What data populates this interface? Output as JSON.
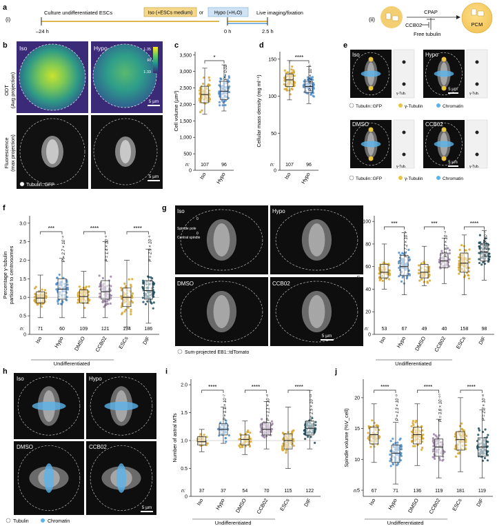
{
  "colors": {
    "iso": "#d6a52b",
    "hypo": "#4f8fcf",
    "dmso": "#d6a52b",
    "ccb02": "#9b83a8",
    "escs": "#d6a52b",
    "dif": "#1f4d5c",
    "tubulin": "#ffffff",
    "gtub": "#e8c441",
    "chromatin": "#5ab4ea",
    "pcm": "#f2c55a"
  },
  "panel_a": {
    "letter": "a",
    "sub_i": "(i)",
    "culture": "Culture undifferentiated ESCs",
    "iso_box": "Iso (+ESCs medium)",
    "or": "or",
    "hypo_box": "Hypo (+H₂O)",
    "live": "Live imaging/fixation",
    "t1": "–24 h",
    "t2": "0 h",
    "t3": "2.5 h",
    "sub_ii": "(ii)",
    "cpap": "CPAP",
    "ccb02": "CCB02",
    "free_tubulin": "Free tubulin",
    "pcm": "PCM"
  },
  "panel_b": {
    "letter": "b",
    "iso": "Iso",
    "hypo": "Hypo",
    "odt_label": "ODT\n(Avg projection)",
    "fluo_label": "Fluorescence\n(max projection)",
    "cb_max": "1.35",
    "cb_mid": "RI",
    "cb_min": "1.33",
    "scale1": "5 µm",
    "scale2": "5 µm",
    "legend": "Tubulin::GFP"
  },
  "panel_c": {
    "letter": "c",
    "ylabel": "Cell volume (µm³)",
    "yticks": [
      "0",
      "500",
      "1,000",
      "1,500",
      "2,000",
      "2,500",
      "3,000",
      "3,500"
    ],
    "sig": "*",
    "p": "P = 0.02",
    "n_label": "n:",
    "n": [
      "107",
      "96"
    ],
    "xcats": [
      "Iso",
      "Hypo"
    ]
  },
  "panel_d": {
    "letter": "d",
    "ylabel": "Cellular mass density (mg ml⁻¹)",
    "yticks": [
      "0",
      "50",
      "100",
      "150"
    ],
    "sig": "****",
    "p": "P = 6.2 × 10⁻⁶",
    "n_label": "n:",
    "n": [
      "107",
      "96"
    ],
    "xcats": [
      "Iso",
      "Hypo"
    ]
  },
  "panel_e": {
    "letter": "e",
    "iso": "Iso",
    "hypo": "Hypo",
    "dmso": "DMSO",
    "ccb02": "CCB02",
    "gtub1": "γ-Tub.",
    "gtub2": "γ-Tub.",
    "gtub3": "γ-Tub.",
    "gtub4": "γ-Tub.",
    "scale1": "5 µm",
    "scale2": "5 µm",
    "legend1": [
      "Tubulin::GFP",
      "γ-Tubulin",
      "Chromatin"
    ],
    "legend2": [
      "Tubulin::GFP",
      "γ-Tubulin",
      "Chromatin"
    ]
  },
  "panel_f": {
    "letter": "f",
    "ylabel": "Percentage γ-tubulin\npartioned to centrosomes",
    "yticks": [
      "0",
      "0.5",
      "1.0",
      "1.5",
      "2.0",
      "2.5",
      "3.0"
    ],
    "sigs": [
      "***",
      "****",
      "****"
    ],
    "ps": [
      "P = 2.7 × 10⁻⁴",
      "P = 1.4 × 10⁻³",
      "P = 2.9 × 10⁻³"
    ],
    "n_label": "n:",
    "n": [
      "71",
      "60",
      "109",
      "121",
      "194",
      "186"
    ],
    "xcats": [
      "Iso",
      "Hypo",
      "DMSO",
      "CCB02",
      "ESCs",
      "DIF"
    ],
    "group": "Undifferentiated"
  },
  "panel_g": {
    "letter": "g",
    "iso": "Iso",
    "hypo": "Hypo",
    "dmso": "DMSO",
    "ccb02": "CCB02",
    "spindle_pole": "Spindle pole",
    "central_spindle": "Central spindle",
    "c0a": "0",
    "c0b": "0",
    "scale": "5 µm",
    "legend": "Sum-projected EB1::tdTomato",
    "ylabel": "EB1 fraction at poles (%)",
    "yticks": [
      "0",
      "20",
      "40",
      "60",
      "80",
      "100"
    ],
    "sigs": [
      "***",
      "***",
      "****"
    ],
    "ps": [
      "P = 7.2 × 10⁻⁴",
      "P = 8.7 × 10⁻⁴",
      "P = 2.0 × 10⁻⁷"
    ],
    "n_label": "n:",
    "n": [
      "53",
      "67",
      "49",
      "40",
      "158",
      "98"
    ],
    "xcats": [
      "Iso",
      "Hypo",
      "DMSO",
      "CCB02",
      "ESCs",
      "DIF"
    ],
    "group": "Undifferentiated"
  },
  "panel_h": {
    "letter": "h",
    "iso": "Iso",
    "hypo": "Hypo",
    "dmso": "DMSO",
    "ccb02": "CCB02",
    "scale": "5 µm",
    "legend": [
      "Tubulin",
      "Chromatin"
    ]
  },
  "panel_i": {
    "letter": "i",
    "ylabel": "Number of astral MTs",
    "yticks": [
      "0",
      "0.5",
      "1.0",
      "1.5",
      "2.0"
    ],
    "sigs": [
      "****",
      "****",
      "****"
    ],
    "ps": [
      "P = 1.1 × 10⁻⁷",
      "P = 1.1 × 10⁻⁸",
      "P = 2.5 × 10⁻¹³"
    ],
    "n_label": "n:",
    "n": [
      "37",
      "37",
      "54",
      "70",
      "115",
      "122"
    ],
    "xcats": [
      "Iso",
      "Hypo",
      "DMSO",
      "CCB02",
      "ESCs",
      "DIF"
    ],
    "group": "Undifferentiated"
  },
  "panel_j": {
    "letter": "j",
    "ylabel": "Spindle volume (%V_cell)",
    "yticks": [
      "5",
      "10",
      "15",
      "20"
    ],
    "sigs": [
      "****",
      "****",
      "****"
    ],
    "ps": [
      "P = 1.3 × 10⁻⁹",
      "P = 3.8 × 10⁻¹⁰",
      "P = 2.3 × 10⁻⁸"
    ],
    "n_label": "n:",
    "n": [
      "67",
      "71",
      "136",
      "119",
      "181",
      "119"
    ],
    "xcats": [
      "Iso",
      "Hypo",
      "DMSO",
      "CCB02",
      "ESCs",
      "DIF"
    ],
    "group": "Undifferentiated"
  },
  "chart_data": [
    {
      "panel": "c",
      "type": "box",
      "ylabel": "Cell volume (µm³)",
      "ylim": [
        0,
        3600
      ],
      "categories": [
        "Iso",
        "Hypo"
      ],
      "median": [
        2300,
        2400
      ],
      "q1": [
        2050,
        2150
      ],
      "q3": [
        2550,
        2700
      ],
      "whisker_low": [
        1700,
        1800
      ],
      "whisker_high": [
        3100,
        3200
      ],
      "n": [
        107,
        96
      ],
      "p": "0.02"
    },
    {
      "panel": "d",
      "type": "box",
      "ylabel": "Cellular mass density (mg ml⁻¹)",
      "ylim": [
        0,
        160
      ],
      "categories": [
        "Iso",
        "Hypo"
      ],
      "median": [
        122,
        113
      ],
      "q1": [
        113,
        105
      ],
      "q3": [
        130,
        120
      ],
      "whisker_low": [
        95,
        90
      ],
      "whisker_high": [
        148,
        140
      ],
      "n": [
        107,
        96
      ],
      "p": "6.2e-6"
    },
    {
      "panel": "f",
      "type": "box",
      "ylabel": "Percentage γ-tubulin partioned to centrosomes",
      "ylim": [
        0,
        3.2
      ],
      "categories": [
        "Iso",
        "Hypo",
        "DMSO",
        "CCB02",
        "ESCs",
        "DIF"
      ],
      "median": [
        0.98,
        1.22,
        1.02,
        1.15,
        1.0,
        1.18
      ],
      "q1": [
        0.85,
        0.95,
        0.85,
        0.95,
        0.75,
        0.95
      ],
      "q3": [
        1.15,
        1.5,
        1.2,
        1.45,
        1.25,
        1.45
      ],
      "whisker_low": [
        0.45,
        0.45,
        0.45,
        0.45,
        0.2,
        0.3
      ],
      "whisker_high": [
        1.6,
        2.05,
        1.7,
        2.5,
        2.0,
        2.3
      ],
      "n": [
        71,
        60,
        109,
        121,
        194,
        186
      ]
    },
    {
      "panel": "g",
      "type": "box",
      "ylabel": "EB1 fraction at poles (%)",
      "ylim": [
        0,
        105
      ],
      "categories": [
        "Iso",
        "Hypo",
        "DMSO",
        "CCB02",
        "ESCs",
        "DIF"
      ],
      "median": [
        55,
        60,
        55,
        65,
        63,
        73
      ],
      "q1": [
        50,
        52,
        50,
        59,
        55,
        65
      ],
      "q3": [
        62,
        70,
        62,
        72,
        72,
        80
      ],
      "whisker_low": [
        40,
        35,
        43,
        45,
        35,
        48
      ],
      "whisker_high": [
        80,
        90,
        78,
        85,
        88,
        92
      ],
      "n": [
        53,
        67,
        49,
        40,
        158,
        98
      ]
    },
    {
      "panel": "i",
      "type": "box",
      "ylabel": "Number of astral MTs",
      "ylim": [
        0,
        2.1
      ],
      "categories": [
        "Iso",
        "Hypo",
        "DMSO",
        "CCB02",
        "ESCs",
        "DIF"
      ],
      "median": [
        0.98,
        1.2,
        1.02,
        1.2,
        1.0,
        1.22
      ],
      "q1": [
        0.92,
        1.1,
        0.92,
        1.1,
        0.85,
        1.1
      ],
      "q3": [
        1.07,
        1.3,
        1.1,
        1.32,
        1.12,
        1.35
      ],
      "whisker_low": [
        0.8,
        0.95,
        0.75,
        0.85,
        0.5,
        0.85
      ],
      "whisker_high": [
        1.2,
        1.6,
        1.35,
        1.7,
        1.6,
        1.9
      ],
      "n": [
        37,
        37,
        54,
        70,
        115,
        122
      ]
    },
    {
      "panel": "j",
      "type": "box",
      "ylabel": "Spindle volume (%V_cell)",
      "ylim": [
        4,
        23
      ],
      "categories": [
        "Iso",
        "Hypo",
        "DMSO",
        "CCB02",
        "ESCs",
        "DIF"
      ],
      "median": [
        14,
        11,
        14,
        12,
        13.2,
        12
      ],
      "q1": [
        12.5,
        9.5,
        12.5,
        10.5,
        11.5,
        10.5
      ],
      "q3": [
        15.2,
        12.3,
        15.2,
        13.3,
        14.5,
        13.5
      ],
      "whisker_low": [
        9.5,
        6,
        9,
        7,
        8,
        7
      ],
      "whisker_high": [
        19,
        16,
        19,
        16.5,
        20,
        18
      ],
      "n": [
        67,
        71,
        136,
        119,
        181,
        119
      ]
    }
  ]
}
